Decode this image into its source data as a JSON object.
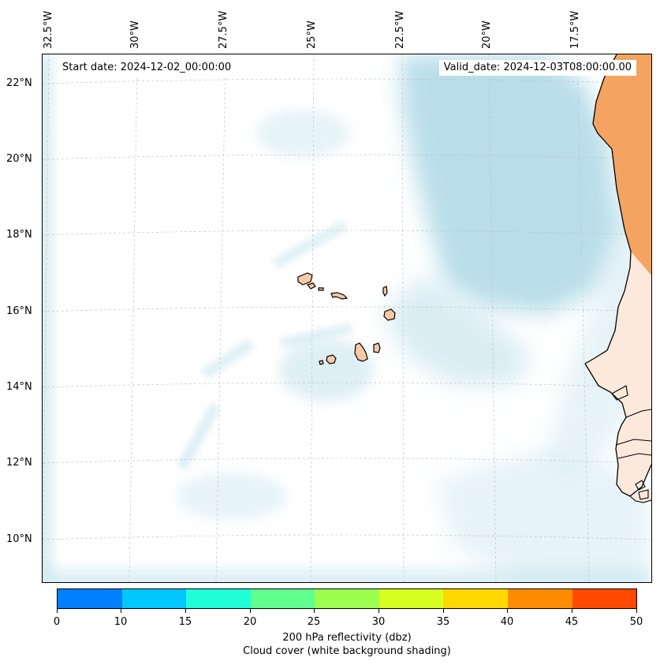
{
  "map": {
    "start_date": "Start date: 2024-12-02_00:00:00",
    "valid_date": "Valid_date: 2024-12-03T08:00:00.00",
    "lon_labels": [
      "32.5°W",
      "30°W",
      "27.5°W",
      "25°W",
      "22.5°W",
      "20°W",
      "17.5°W"
    ],
    "lat_labels": [
      "22°N",
      "20°N",
      "18°N",
      "16°N",
      "14°N",
      "12°N",
      "10°N"
    ],
    "colors": {
      "cloud": "#add8e6",
      "land_high": "#f4a460",
      "land_low": "#fde9dc",
      "island": "#f7c9a5",
      "coast": "#000000",
      "grid": "#bbbbbb"
    }
  },
  "colorbar": {
    "ticks": [
      "0",
      "10",
      "15",
      "20",
      "25",
      "30",
      "35",
      "40",
      "45",
      "50"
    ],
    "colors": [
      "#0080ff",
      "#00c8ff",
      "#20ffd8",
      "#60ff90",
      "#9cff50",
      "#d8ff20",
      "#ffd800",
      "#ff8c00",
      "#ff4a00"
    ],
    "label": "200 hPa reflectivity (dbz)",
    "sublabel": "Cloud cover (white background shading)"
  }
}
